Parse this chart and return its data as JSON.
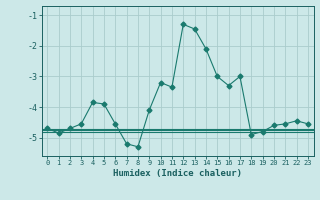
{
  "x": [
    0,
    1,
    2,
    3,
    4,
    5,
    6,
    7,
    8,
    9,
    10,
    11,
    12,
    13,
    14,
    15,
    16,
    17,
    18,
    19,
    20,
    21,
    22,
    23
  ],
  "y": [
    -4.7,
    -4.85,
    -4.7,
    -4.55,
    -3.85,
    -3.9,
    -4.55,
    -5.2,
    -5.3,
    -4.1,
    -3.2,
    -3.35,
    -1.3,
    -1.45,
    -2.1,
    -3.0,
    -3.3,
    -3.0,
    -4.9,
    -4.8,
    -4.6,
    -4.55,
    -4.45,
    -4.55
  ],
  "line_color": "#1a7a6e",
  "marker": "D",
  "marker_size": 2.5,
  "bg_color": "#cce8e8",
  "grid_color": "#aacccc",
  "axis_color": "#1a6060",
  "xlabel": "Humidex (Indice chaleur)",
  "yticks": [
    -5,
    -4,
    -3,
    -2,
    -1
  ],
  "xticks": [
    0,
    1,
    2,
    3,
    4,
    5,
    6,
    7,
    8,
    9,
    10,
    11,
    12,
    13,
    14,
    15,
    16,
    17,
    18,
    19,
    20,
    21,
    22,
    23
  ],
  "xlim": [
    -0.5,
    23.5
  ],
  "ylim": [
    -5.6,
    -0.7
  ],
  "extra_hlines": [
    -4.72,
    -4.76,
    -4.8
  ],
  "hline_color": "#1a7a6e"
}
